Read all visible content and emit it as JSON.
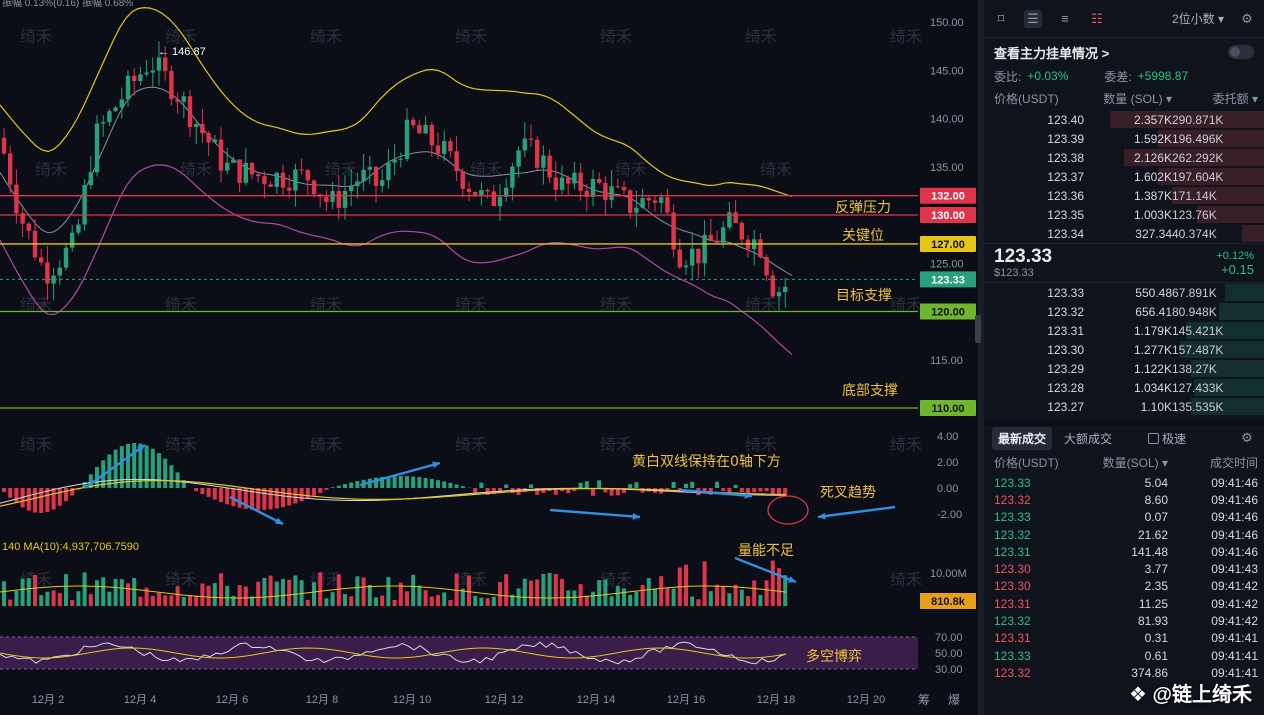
{
  "chart": {
    "top_info": "振幅 0.13%(0.16)  振幅 0.68%",
    "watermark_text": "绮禾",
    "price_axis": [
      "150.00",
      "145.00",
      "140.00",
      "135.00",
      "130.00",
      "125.00",
      "120.00",
      "115.00",
      "110.00"
    ],
    "high_label": "← 146.87",
    "levels": [
      {
        "value": "132.00",
        "color": "#e0344b",
        "annotation": "反弹压力"
      },
      {
        "value": "130.00",
        "color": "#e0344b",
        "annotation": ""
      },
      {
        "value": "127.00",
        "color": "#e6c619",
        "annotation": "关键位"
      },
      {
        "value": "123.33",
        "color": "#26a17b",
        "annotation": "目标支撑"
      },
      {
        "value": "120.00",
        "color": "#6fb62c",
        "annotation": ""
      },
      {
        "value": "110.00",
        "color": "#6fb62c",
        "annotation": "底部支撑"
      }
    ],
    "macd_axis": [
      "4.00",
      "2.00",
      "0.00",
      "-2.00"
    ],
    "macd_note1": "黄白双线保持在0轴下方",
    "macd_note2": "死叉趋势",
    "vol_label": "140  MA(10):4,937,706.7590",
    "vol_axis": "10.00M",
    "vol_current": "810.8k",
    "vol_note": "量能不足",
    "rsi_axis": [
      "70.00",
      "50.00",
      "30.00"
    ],
    "rsi_note": "多空博弈",
    "x_axis": [
      "12月 2",
      "12月 4",
      "12月 6",
      "12月 8",
      "12月 10",
      "12月 12",
      "12月 14",
      "12月 16",
      "12月 18",
      "12月 20"
    ],
    "corner_labels": [
      "筹",
      "爆"
    ]
  },
  "orderbook": {
    "toolbar": {
      "precision": "2位小数 ▾"
    },
    "title": "查看主力挂单情况 >",
    "ratio_label": "委比:",
    "ratio_value": "+0.03%",
    "diff_label": "委差:",
    "diff_value": "+5998.87",
    "headers": [
      "价格(USDT)",
      "数量 (SOL) ▾",
      "委托额 ▾"
    ],
    "asks": [
      {
        "price": "123.40",
        "qty": "2.357K",
        "total": "290.871K",
        "depth": 0.55
      },
      {
        "price": "123.39",
        "qty": "1.592K",
        "total": "196.496K",
        "depth": 0.38
      },
      {
        "price": "123.38",
        "qty": "2.126K",
        "total": "262.292K",
        "depth": 0.5
      },
      {
        "price": "123.37",
        "qty": "1.602K",
        "total": "197.604K",
        "depth": 0.38
      },
      {
        "price": "123.36",
        "qty": "1.387K",
        "total": "171.14K",
        "depth": 0.33
      },
      {
        "price": "123.35",
        "qty": "1.003K",
        "total": "123.76K",
        "depth": 0.24
      },
      {
        "price": "123.34",
        "qty": "327.34",
        "total": "40.374K",
        "depth": 0.08
      }
    ],
    "mid": {
      "price": "123.33",
      "usd": "$123.33",
      "pct": "+0.12%",
      "change": "+0.15"
    },
    "bids": [
      {
        "price": "123.33",
        "qty": "550.48",
        "total": "67.891K",
        "depth": 0.14
      },
      {
        "price": "123.32",
        "qty": "656.41",
        "total": "80.948K",
        "depth": 0.16
      },
      {
        "price": "123.31",
        "qty": "1.179K",
        "total": "145.421K",
        "depth": 0.28
      },
      {
        "price": "123.30",
        "qty": "1.277K",
        "total": "157.487K",
        "depth": 0.3
      },
      {
        "price": "123.29",
        "qty": "1.122K",
        "total": "138.27K",
        "depth": 0.26
      },
      {
        "price": "123.28",
        "qty": "1.034K",
        "total": "127.433K",
        "depth": 0.25
      },
      {
        "price": "123.27",
        "qty": "1.10K",
        "total": "135.535K",
        "depth": 0.26
      }
    ]
  },
  "trades": {
    "tab_latest": "最新成交",
    "tab_large": "大额成交",
    "tab_fast": "极速",
    "headers": [
      "价格(USDT)",
      "数量(SOL) ▾",
      "成交时间"
    ],
    "rows": [
      {
        "price": "123.33",
        "qty": "5.04",
        "time": "09:41:46",
        "side": "buy"
      },
      {
        "price": "123.32",
        "qty": "8.60",
        "time": "09:41:46",
        "side": "sell"
      },
      {
        "price": "123.33",
        "qty": "0.07",
        "time": "09:41:46",
        "side": "buy"
      },
      {
        "price": "123.32",
        "qty": "21.62",
        "time": "09:41:46",
        "side": "buy"
      },
      {
        "price": "123.31",
        "qty": "141.48",
        "time": "09:41:46",
        "side": "buy"
      },
      {
        "price": "123.30",
        "qty": "3.77",
        "time": "09:41:43",
        "side": "sell"
      },
      {
        "price": "123.30",
        "qty": "2.35",
        "time": "09:41:42",
        "side": "sell"
      },
      {
        "price": "123.31",
        "qty": "11.25",
        "time": "09:41:42",
        "side": "sell"
      },
      {
        "price": "123.32",
        "qty": "81.93",
        "time": "09:41:42",
        "side": "buy"
      },
      {
        "price": "123.31",
        "qty": "0.31",
        "time": "09:41:41",
        "side": "sell"
      },
      {
        "price": "123.33",
        "qty": "0.61",
        "time": "09:41:41",
        "side": "buy"
      },
      {
        "price": "123.32",
        "qty": "374.86",
        "time": "09:41:41",
        "side": "sell"
      }
    ],
    "brand": "链上绮禾"
  }
}
